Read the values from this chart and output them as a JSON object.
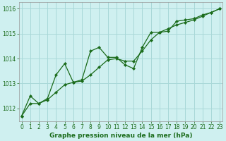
{
  "title": "Graphe pression niveau de la mer (hPa)",
  "xlabel_ticks": [
    0,
    1,
    2,
    3,
    4,
    5,
    6,
    7,
    8,
    9,
    10,
    11,
    12,
    13,
    14,
    15,
    16,
    17,
    18,
    19,
    20,
    21,
    22,
    23
  ],
  "ylim": [
    1011.5,
    1016.25
  ],
  "yticks": [
    1012,
    1013,
    1014,
    1015,
    1016
  ],
  "xlim": [
    -0.3,
    23.3
  ],
  "background_color": "#cff0f0",
  "grid_color": "#a8d8d8",
  "line_color": "#1a6b1a",
  "line_jagged_y": [
    1011.7,
    1012.5,
    1012.2,
    1012.4,
    1013.35,
    1013.8,
    1013.05,
    1013.15,
    1014.3,
    1014.45,
    1014.05,
    1014.05,
    1013.75,
    1013.6,
    1014.45,
    1015.05,
    1015.05,
    1015.1,
    1015.5,
    1015.55,
    1015.6,
    1015.75,
    1015.85,
    1016.0
  ],
  "line_smooth_y": [
    1011.7,
    1012.2,
    1012.2,
    1012.35,
    1012.65,
    1012.95,
    1013.05,
    1013.1,
    1013.35,
    1013.65,
    1013.95,
    1014.0,
    1013.9,
    1013.9,
    1014.3,
    1014.75,
    1015.05,
    1015.2,
    1015.35,
    1015.45,
    1015.55,
    1015.7,
    1015.85,
    1016.0
  ],
  "title_fontsize": 6.5,
  "tick_fontsize": 5.5
}
